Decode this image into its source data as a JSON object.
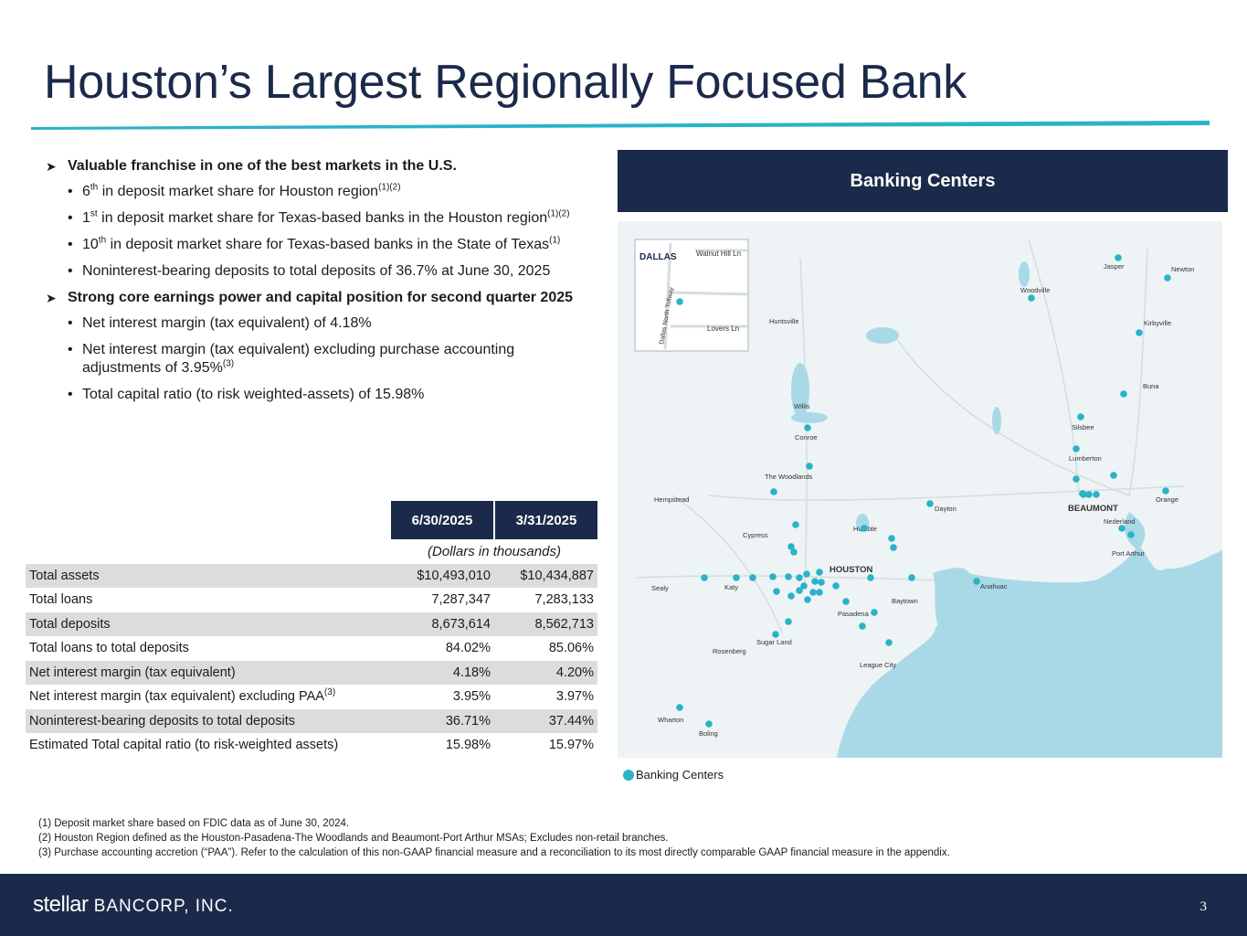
{
  "title": "Houston’s Largest Regionally Focused Bank",
  "bullets": [
    {
      "text": "Valuable franchise in one of the best markets in the U.S."
    },
    {
      "text": "Strong core earnings power and capital position for second quarter 2025"
    }
  ],
  "sub_bullets_1": {
    "a_pre": "6",
    "a_sup": "th",
    "a_text": " in deposit market share for Houston region",
    "a_ref": "(1)(2)",
    "b_pre": "1",
    "b_sup": "st",
    "b_text": " in deposit market share for Texas-based banks in the Houston region",
    "b_ref": "(1)(2)",
    "c_pre": "10",
    "c_sup": "th",
    "c_text": " in deposit market share for Texas-based banks in the State of Texas",
    "c_ref": "(1)",
    "d_text": "Noninterest-bearing deposits to total deposits of 36.7% at June 30, 2025"
  },
  "sub_bullets_2": {
    "a_text": "Net interest margin (tax equivalent) of 4.18%",
    "b_text": "Net interest margin (tax equivalent) excluding purchase accounting adjustments of 3.95%",
    "b_ref": "(3)",
    "c_text": "Total capital ratio (to risk weighted-assets) of 15.98%"
  },
  "map": {
    "header": "Banking Centers",
    "inset_labels": {
      "city": "DALLAS",
      "road1": "Walnut Hill Ln",
      "road2": "Lovers Ln",
      "road3": "Dallas North Tollway"
    },
    "city_labels": [
      "Jasper",
      "Newton",
      "Woodville",
      "Kirbyville",
      "Huntsville",
      "Buna",
      "Willis",
      "Silsbee",
      "Conroe",
      "Lumberton",
      "The Woodlands",
      "Hempstead",
      "Dayton",
      "BEAUMONT",
      "Orange",
      "Nederland",
      "Cypress",
      "Humble",
      "Port Arthur",
      "HOUSTON",
      "Sealy",
      "Katy",
      "Anahuac",
      "Baytown",
      "Pasadena",
      "Sugar Land",
      "Rosenberg",
      "League City",
      "Wharton",
      "Boling"
    ],
    "legend_label": "Banking Centers",
    "colors": {
      "pin": "#2ab3c6",
      "water": "#a9d9e6",
      "land": "#eef3f5"
    }
  },
  "table": {
    "col1": "6/30/2025",
    "col2": "3/31/2025",
    "units": "(Dollars in thousands)",
    "rows": [
      {
        "label": "Total assets",
        "v1": "$10,493,010",
        "v2": "$10,434,887"
      },
      {
        "label": "Total loans",
        "v1": "7,287,347",
        "v2": "7,283,133"
      },
      {
        "label": "Total deposits",
        "v1": "8,673,614",
        "v2": "8,562,713"
      },
      {
        "label": "Total loans to total deposits",
        "v1": "84.02%",
        "v2": "85.06%"
      },
      {
        "label": "Net interest margin (tax equivalent)",
        "v1": "4.18%",
        "v2": "4.20%"
      },
      {
        "label": "Net interest margin (tax equivalent) excluding PAA",
        "ref": "(3)",
        "v1": "3.95%",
        "v2": "3.97%"
      },
      {
        "label": "Noninterest-bearing deposits to total deposits",
        "v1": "36.71%",
        "v2": "37.44%"
      },
      {
        "label": "Estimated Total capital ratio (to risk-weighted assets)",
        "v1": "15.98%",
        "v2": "15.97%"
      }
    ]
  },
  "footnotes": [
    "(1) Deposit market share based on FDIC data as of June 30, 2024.",
    "(2) Houston Region defined as the Houston-Pasadena-The Woodlands and Beaumont-Port Arthur MSAs; Excludes non-retail branches.",
    "(3) Purchase accounting accretion (“PAA”). Refer to the calculation of this non-GAAP financial measure and a reconciliation to its most directly comparable GAAP financial measure in the appendix."
  ],
  "footer": {
    "logo_main": "stellar",
    "logo_sub": "BANCORP, INC.",
    "page": "3",
    "bg": "#1b2a4a"
  }
}
